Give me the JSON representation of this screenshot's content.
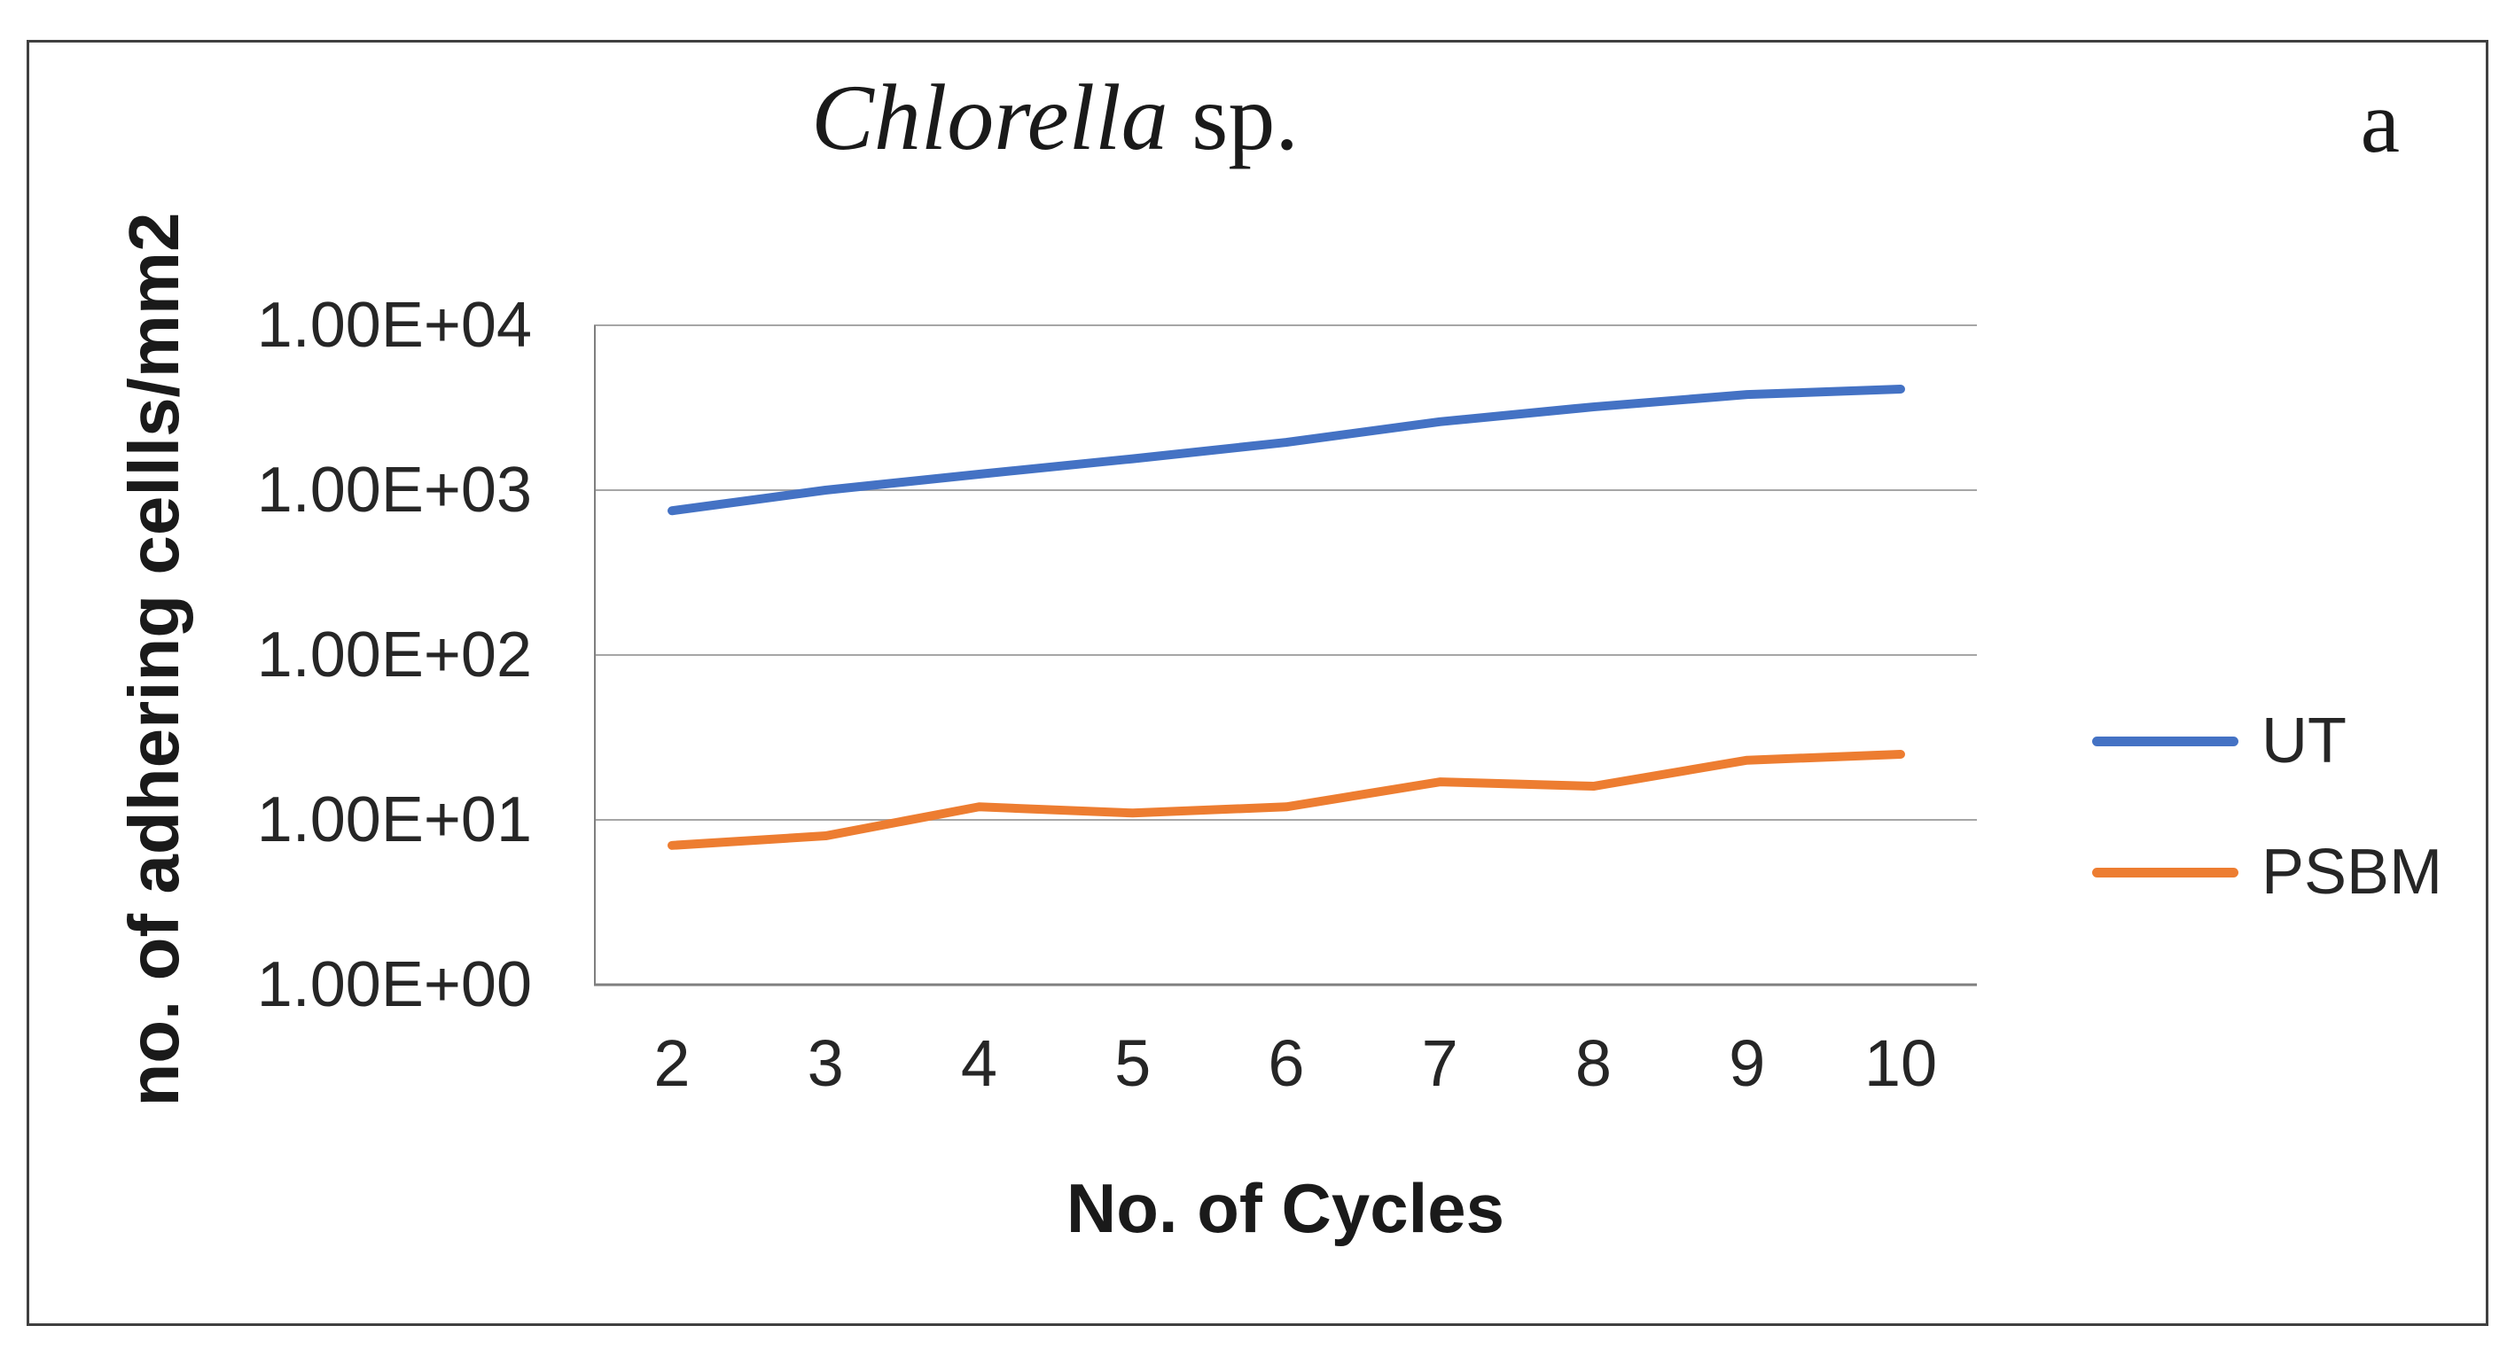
{
  "chart_data": {
    "type": "line",
    "title_italic": "Chlorella",
    "title_rest": " sp.",
    "panel_label": "a",
    "xlabel": "No. of Cycles",
    "ylabel": "no. of adhering cellls/mm2",
    "x": [
      2,
      3,
      4,
      5,
      6,
      7,
      8,
      9,
      10
    ],
    "xtick_labels": [
      "2",
      "3",
      "4",
      "5",
      "6",
      "7",
      "8",
      "9",
      "10"
    ],
    "yticks": [
      "1.00E+00",
      "1.00E+01",
      "1.00E+02",
      "1.00E+03",
      "1.00E+04"
    ],
    "ylim": [
      1,
      10000
    ],
    "yscale": "log",
    "grid": true,
    "legend_position": "right",
    "colors": {
      "grid": "#a6a6a6",
      "axis": "#7f7f7f"
    },
    "series": [
      {
        "name": "UT",
        "color": "#4472C4",
        "values": [
          750,
          1000,
          1250,
          1550,
          1950,
          2600,
          3200,
          3800,
          4100
        ]
      },
      {
        "name": "PSBM",
        "color": "#ED7D31",
        "values": [
          7,
          8,
          12,
          11,
          12,
          17,
          16,
          23,
          25
        ]
      }
    ]
  }
}
